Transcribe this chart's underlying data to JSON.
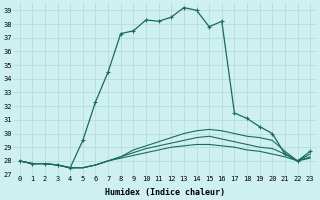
{
  "xlabel": "Humidex (Indice chaleur)",
  "background_color": "#cff0f0",
  "line_color": "#1a6b5a",
  "grid_color": "#b0d8d8",
  "xlim": [
    -0.5,
    23.5
  ],
  "ylim": [
    27,
    39.5
  ],
  "yticks": [
    27,
    28,
    29,
    30,
    31,
    32,
    33,
    34,
    35,
    36,
    37,
    38,
    39
  ],
  "xticks": [
    0,
    1,
    2,
    3,
    4,
    5,
    6,
    7,
    8,
    9,
    10,
    11,
    12,
    13,
    14,
    15,
    16,
    17,
    18,
    19,
    20,
    21,
    22,
    23
  ],
  "series": [
    [
      28.0,
      27.8,
      27.8,
      27.7,
      27.5,
      29.5,
      32.3,
      34.5,
      37.3,
      37.5,
      38.3,
      38.2,
      38.5,
      39.2,
      39.0,
      37.8,
      38.2,
      31.5,
      31.1,
      30.5,
      30.0,
      28.5,
      28.0,
      28.7
    ],
    [
      28.0,
      27.8,
      27.8,
      27.7,
      27.5,
      27.5,
      27.7,
      28.0,
      28.3,
      28.8,
      29.1,
      29.4,
      29.7,
      30.0,
      30.2,
      30.3,
      30.2,
      30.0,
      29.8,
      29.7,
      29.5,
      28.7,
      28.0,
      28.5
    ],
    [
      28.0,
      27.8,
      27.8,
      27.7,
      27.5,
      27.5,
      27.7,
      28.0,
      28.3,
      28.6,
      28.9,
      29.1,
      29.3,
      29.5,
      29.7,
      29.8,
      29.6,
      29.4,
      29.2,
      29.0,
      28.9,
      28.5,
      28.0,
      28.3
    ],
    [
      28.0,
      27.8,
      27.8,
      27.7,
      27.5,
      27.5,
      27.7,
      28.0,
      28.2,
      28.4,
      28.6,
      28.8,
      29.0,
      29.1,
      29.2,
      29.2,
      29.1,
      29.0,
      28.8,
      28.7,
      28.5,
      28.3,
      28.0,
      28.2
    ]
  ],
  "marker_series": 0
}
